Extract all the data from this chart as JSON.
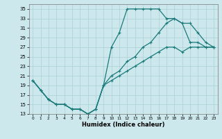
{
  "xlabel": "Humidex (Indice chaleur)",
  "bg_color": "#cce8ec",
  "grid_color": "#aad0d8",
  "line_color": "#1a7a7a",
  "xlim": [
    -0.5,
    23.5
  ],
  "ylim": [
    13,
    36
  ],
  "xticks": [
    0,
    1,
    2,
    3,
    4,
    5,
    6,
    7,
    8,
    9,
    10,
    11,
    12,
    13,
    14,
    15,
    16,
    17,
    18,
    19,
    20,
    21,
    22,
    23
  ],
  "yticks": [
    13,
    15,
    17,
    19,
    21,
    23,
    25,
    27,
    29,
    31,
    33,
    35
  ],
  "line1_x": [
    0,
    1,
    2,
    3,
    4,
    5,
    6,
    7,
    8,
    9,
    10,
    11,
    12,
    13,
    14,
    15,
    16,
    17,
    18,
    19,
    20,
    21,
    22,
    23
  ],
  "line1_y": [
    20,
    18,
    16,
    15,
    15,
    14,
    14,
    13,
    14,
    19,
    27,
    30,
    35,
    35,
    35,
    35,
    35,
    33,
    33,
    32,
    28,
    28,
    27,
    27
  ],
  "line2_x": [
    0,
    1,
    2,
    3,
    4,
    5,
    6,
    7,
    8,
    9,
    10,
    11,
    12,
    13,
    14,
    15,
    16,
    17,
    18,
    19,
    20,
    21,
    22,
    23
  ],
  "line2_y": [
    20,
    18,
    16,
    15,
    15,
    14,
    14,
    13,
    14,
    19,
    21,
    22,
    24,
    25,
    27,
    28,
    30,
    32,
    33,
    32,
    32,
    30,
    28,
    27
  ],
  "line3_x": [
    0,
    1,
    2,
    3,
    4,
    5,
    6,
    7,
    8,
    9,
    10,
    11,
    12,
    13,
    14,
    15,
    16,
    17,
    18,
    19,
    20,
    21,
    22,
    23
  ],
  "line3_y": [
    20,
    18,
    16,
    15,
    15,
    14,
    14,
    13,
    14,
    19,
    20,
    21,
    22,
    23,
    24,
    25,
    26,
    27,
    27,
    26,
    27,
    27,
    27,
    27
  ]
}
